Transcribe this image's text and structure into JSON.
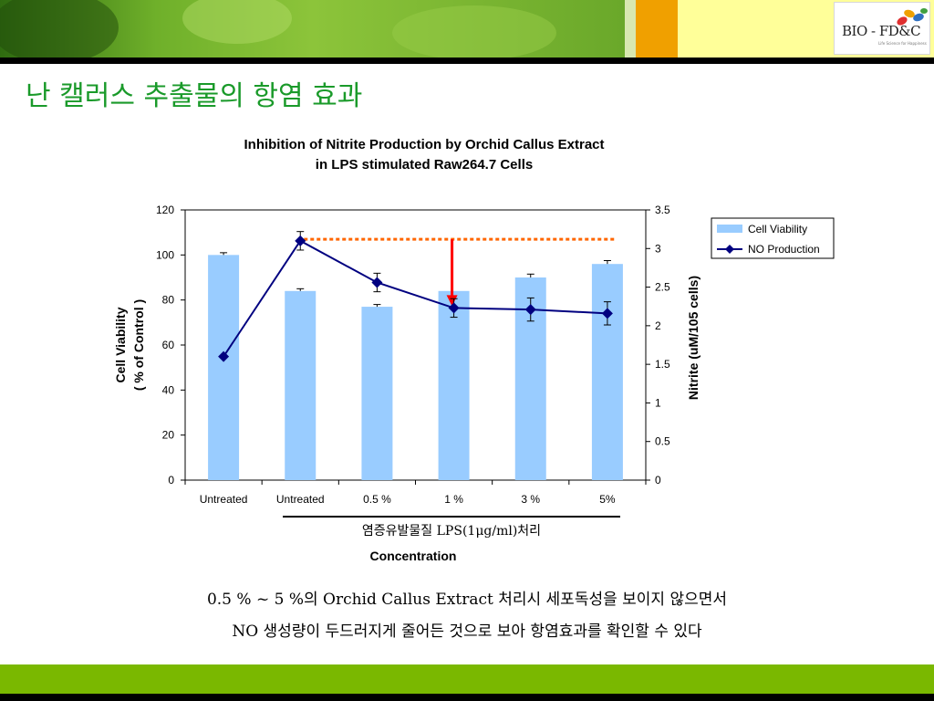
{
  "slide": {
    "title": "난 캘러스 추출물의 항염 효과",
    "logo_text": "BIO - FD&C",
    "logo_tagline": "Life Science for Happiness",
    "caption_line1": "0.5 % ~ 5 %의 Orchid Callus Extract 처리시 세포독성을 보이지 않으면서",
    "caption_line2": "NO 생성량이 두드러지게 줄어든 것으로 보아  항염효과를 확인할 수 있다"
  },
  "colors": {
    "title_green": "#1a9a2a",
    "bar_fill": "#99ccff",
    "line_color": "#000080",
    "reference_line": "#ff6600",
    "arrow": "#ff0000",
    "band_green": "#7ab800",
    "band_orange": "#f0a000"
  },
  "chart_data": {
    "type": "bar",
    "title_line1": "Inhibition of Nitrite Production by Orchid Callus Extract",
    "title_line2": "in LPS stimulated Raw264.7 Cells",
    "categories": [
      "Untreated",
      "Untreated",
      "0.5 %",
      "1 %",
      "3 %",
      "5%"
    ],
    "xlabel": "Concentration",
    "bracket_label": "염증유발물질 LPS(1μg/ml)처리",
    "ylabel_left_line1": "Cell Viability",
    "ylabel_left_line2": "( % of Control )",
    "ylabel_right": "Nitrite (uM/105 cells)",
    "ylim_left": [
      0,
      120
    ],
    "yticks_left": [
      "0",
      "20",
      "40",
      "60",
      "80",
      "100",
      "120"
    ],
    "ylim_right": [
      0,
      3.5
    ],
    "yticks_right": [
      "0",
      "0.5",
      "1",
      "1.5",
      "2",
      "2.5",
      "3",
      "3.5"
    ],
    "legend_position": "top-right",
    "series": [
      {
        "name": "Cell Viability",
        "kind": "bar",
        "axis": "left",
        "values": [
          100,
          84,
          77,
          84,
          90,
          96
        ],
        "errors": [
          1,
          1,
          1,
          0,
          1.5,
          1.5
        ]
      },
      {
        "name": "NO Production",
        "kind": "line",
        "axis": "right",
        "values": [
          1.6,
          3.1,
          2.56,
          2.23,
          2.21,
          2.16
        ],
        "errors": [
          0,
          0.12,
          0.12,
          0.12,
          0.15,
          0.15
        ]
      }
    ],
    "reference_value": 3.12
  }
}
